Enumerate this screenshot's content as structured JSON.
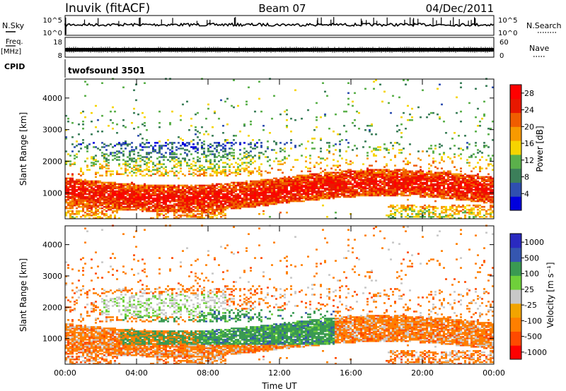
{
  "header": {
    "station": "Inuvik (fitACF)",
    "beam": "Beam 07",
    "date": "04/Dec/2011"
  },
  "strip_labels": {
    "nsky": "N.Sky",
    "nsearch": "N.Search",
    "freq": "Freq.",
    "freq_unit": "[MHz]",
    "nave": "Nave",
    "cpid": "CPID",
    "cpid_value": "twofsound 3501"
  },
  "strip_ticks": {
    "nsky_top": "10^5",
    "nsky_bottom": "10^0",
    "freq_top": "18",
    "freq_bottom": "8",
    "nave_top": "60",
    "nave_bottom": "0"
  },
  "colors": {
    "power_scale": [
      "#0000dd",
      "#2f4fb0",
      "#3c7f5a",
      "#5bb04b",
      "#f6d400",
      "#f79a00",
      "#f05d00",
      "#e81800",
      "#ff0000"
    ],
    "velocity_scale": [
      "#ff0000",
      "#ff4a00",
      "#ff7f00",
      "#f2a400",
      "#c8c8c8",
      "#6fd03a",
      "#3a9a52",
      "#3556b0",
      "#2a2ac0"
    ],
    "axis": "#000000",
    "background": "#ffffff"
  },
  "chart_data": [
    {
      "type": "heatmap",
      "title": "Inuvik (fitACF)  Beam 07  04/Dec/2011",
      "xlabel": "Time UT",
      "ylabel": "Slant Range [km]",
      "xticks": [
        "00:00",
        "04:00",
        "08:00",
        "12:00",
        "16:00",
        "20:00",
        "00:00"
      ],
      "yticks": [
        "1000",
        "2000",
        "3000",
        "4000"
      ],
      "xlim_hours": [
        0,
        24
      ],
      "ylim_km": [
        180,
        4600
      ],
      "colorbar_label": "Power [dB]",
      "colorbar_ticks": [
        "4",
        "8",
        "12",
        "16",
        "20",
        "24",
        "28"
      ],
      "colorbar_range": [
        0,
        30
      ],
      "grid": false
    },
    {
      "type": "heatmap",
      "xlabel": "Time UT",
      "ylabel": "Slant Range [km]",
      "xticks": [
        "00:00",
        "04:00",
        "08:00",
        "12:00",
        "16:00",
        "20:00",
        "00:00"
      ],
      "yticks": [
        "1000",
        "2000",
        "3000",
        "4000"
      ],
      "xlim_hours": [
        0,
        24
      ],
      "ylim_km": [
        180,
        4600
      ],
      "colorbar_label": "Velocity [m s⁻¹]",
      "colorbar_ticks": [
        "1000",
        "500",
        "100",
        "25",
        "-25",
        "-100",
        "-500",
        "-1000"
      ],
      "grid": false
    }
  ]
}
